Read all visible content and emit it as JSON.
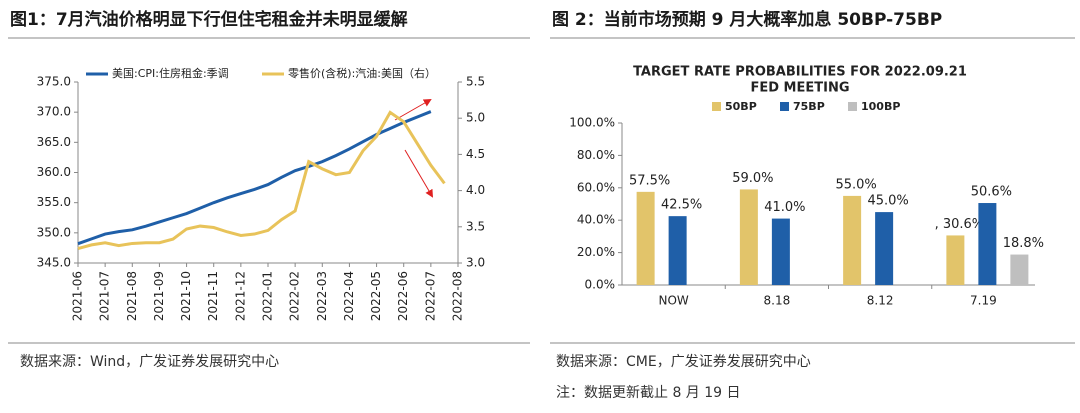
{
  "chart_data": [
    {
      "type": "line",
      "title": "图1：7月汽油价格明显下行但住宅租金并未明显缓解",
      "categories": [
        "2021-06",
        null,
        "2021-07",
        null,
        "2021-08",
        null,
        "2021-09",
        null,
        "2021-10",
        null,
        "2021-11",
        null,
        "2021-12",
        null,
        "2022-01",
        null,
        "2022-02",
        null,
        "2022-03",
        null,
        "2022-04",
        null,
        "2022-05",
        null,
        "2022-06",
        null,
        "2022-07",
        null,
        "2022-08"
      ],
      "series": [
        {
          "name": "美国:CPI:住房租金:季调",
          "color": "#1f5fa8",
          "values": [
            348.2,
            349.0,
            349.8,
            350.2,
            350.5,
            351.1,
            351.8,
            352.5,
            353.2,
            354.1,
            355.0,
            355.8,
            356.5,
            357.2,
            358.0,
            359.2,
            360.3,
            361.0,
            361.8,
            362.8,
            363.9,
            365.1,
            366.3,
            367.3,
            368.3,
            369.2,
            370.1,
            null,
            null
          ]
        },
        {
          "name": "零售价(含税):汽油:美国（右）",
          "color": "#e8c35a",
          "axis": "y2",
          "values": [
            3.2,
            3.25,
            3.28,
            3.24,
            3.27,
            3.28,
            3.28,
            3.33,
            3.47,
            3.51,
            3.49,
            3.43,
            3.38,
            3.4,
            3.45,
            3.6,
            3.72,
            4.4,
            4.3,
            4.22,
            4.25,
            4.55,
            4.75,
            5.08,
            4.95,
            4.65,
            4.35,
            4.1,
            null
          ]
        }
      ],
      "ylim": [
        345,
        375
      ],
      "yticks": [
        {
          "value": 345,
          "label": "345.0"
        },
        {
          "value": 350,
          "label": "350.0"
        },
        {
          "value": 355,
          "label": "355.0"
        },
        {
          "value": 360,
          "label": "360.0"
        },
        {
          "value": 365,
          "label": "365.0"
        },
        {
          "value": 370,
          "label": "370.0"
        },
        {
          "value": 375,
          "label": "375.0"
        }
      ],
      "y2lim": [
        3.0,
        5.5
      ],
      "y2ticks": [
        {
          "value": 3,
          "label": "3.0"
        },
        3.5,
        {
          "value": 4,
          "label": "4.0"
        },
        4.5,
        {
          "value": 5,
          "label": "5.0"
        },
        5.5
      ],
      "grid": false,
      "legend": "top",
      "source": "数据来源：Wind，广发证券发展研究中心"
    },
    {
      "type": "bar",
      "heading": "图 2：当前市场预期 9 月大概率加息 50BP-75BP",
      "title": "TARGET RATE PROBABILITIES FOR 2022.09.21",
      "subtitle": "FED MEETING",
      "categories": [
        "NOW",
        "8.18",
        "8.12",
        "7.19"
      ],
      "series": [
        {
          "name": "50BP",
          "color": "#e2c46a",
          "values": [
            57.5,
            59.0,
            55.0,
            30.6
          ],
          "value_labels": [
            "57.5%",
            "59.0%",
            "55.0%",
            ", 30.6%"
          ]
        },
        {
          "name": "75BP",
          "color": "#1f5fa8",
          "values": [
            42.5,
            41.0,
            45.0,
            50.6
          ],
          "value_labels": [
            "42.5%",
            "41.0%",
            "45.0%",
            "50.6%"
          ]
        },
        {
          "name": "100BP",
          "color": "#bfbfbf",
          "values": [
            null,
            null,
            null,
            18.8
          ],
          "value_labels": [
            null,
            null,
            null,
            "18.8%"
          ]
        }
      ],
      "ylim": [
        0,
        100
      ],
      "yticks": [
        {
          "value": 0,
          "label": "0.0%"
        },
        {
          "value": 20,
          "label": "20.0%"
        },
        {
          "value": 40,
          "label": "40.0%"
        },
        {
          "value": 60,
          "label": "60.0%"
        },
        {
          "value": 80,
          "label": "80.0%"
        },
        {
          "value": 100,
          "label": "100.0%"
        }
      ],
      "grid": false,
      "legend": "top",
      "source": "数据来源：CME，广发证券发展研究中心",
      "note": "注：数据更新截止 8 月 19 日"
    }
  ]
}
